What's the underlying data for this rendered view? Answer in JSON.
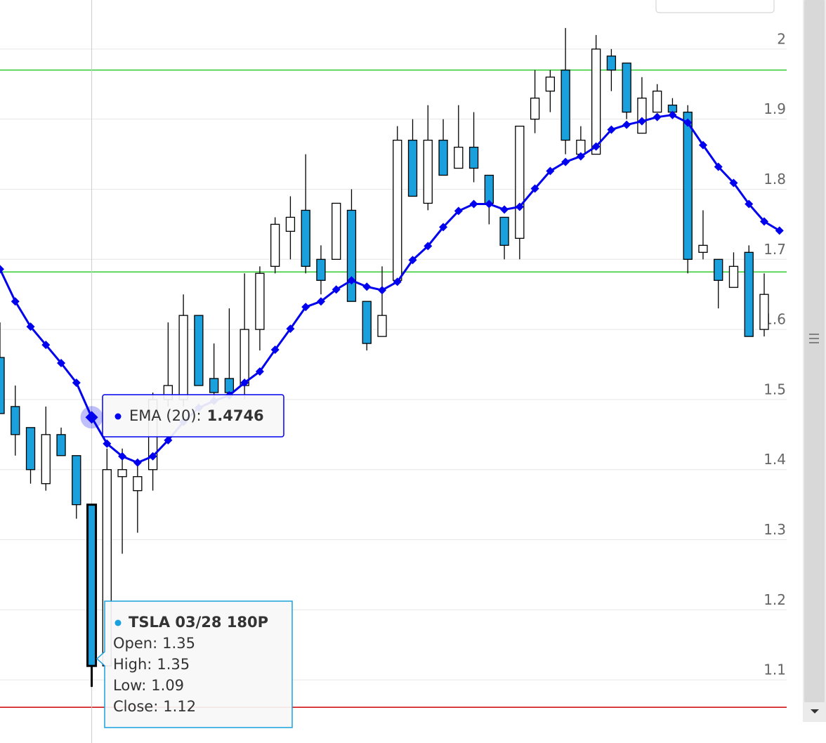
{
  "chart_data": {
    "type": "candlestick",
    "ylim": [
      1.01,
      2.07
    ],
    "yticks": [
      1.1,
      1.2,
      1.3,
      1.4,
      1.5,
      1.6,
      1.7,
      1.8,
      1.9,
      2
    ],
    "grid": true,
    "plot_lines": [
      {
        "value": 1.97,
        "color": "#33cc33"
      },
      {
        "value": 1.682,
        "color": "#33cc33"
      },
      {
        "value": 1.061,
        "color": "#cc0000"
      }
    ],
    "series": [
      {
        "name": "TSLA 03/28 180P",
        "type": "candlestick",
        "color": "#1aa0dc",
        "open": [
          1.56,
          1.49,
          1.46,
          1.38,
          1.45,
          1.42,
          1.35,
          1.12,
          1.39,
          1.37,
          1.4,
          1.5,
          1.5,
          1.62,
          1.53,
          1.53,
          1.52,
          1.6,
          1.69,
          1.74,
          1.77,
          1.7,
          1.7,
          1.77,
          1.64,
          1.59,
          1.67,
          1.87,
          1.78,
          1.87,
          1.83,
          1.86,
          1.82,
          1.76,
          1.73,
          1.9,
          1.94,
          1.97,
          1.85,
          1.85,
          1.99,
          1.98,
          1.88,
          1.91,
          1.92,
          1.91,
          1.71,
          1.7,
          1.66,
          1.71,
          1.6,
          null
        ],
        "high": [
          1.61,
          1.52,
          1.46,
          1.49,
          1.46,
          1.42,
          1.35,
          1.43,
          1.43,
          1.41,
          1.51,
          1.61,
          1.65,
          1.62,
          1.58,
          1.63,
          1.68,
          1.69,
          1.76,
          1.79,
          1.85,
          1.72,
          1.78,
          1.8,
          1.64,
          1.69,
          1.89,
          1.9,
          1.92,
          1.9,
          1.92,
          1.91,
          1.82,
          1.76,
          1.89,
          1.97,
          1.97,
          2.03,
          1.89,
          2.02,
          2.0,
          1.98,
          1.96,
          1.95,
          1.93,
          1.92,
          1.77,
          1.7,
          1.71,
          1.72,
          1.68,
          null
        ],
        "low": [
          1.48,
          1.42,
          1.38,
          1.37,
          1.42,
          1.33,
          1.09,
          1.12,
          1.28,
          1.31,
          1.37,
          1.49,
          1.49,
          1.52,
          1.5,
          1.5,
          1.5,
          1.57,
          1.68,
          1.7,
          1.68,
          1.65,
          1.7,
          1.64,
          1.57,
          1.59,
          1.67,
          1.79,
          1.77,
          1.82,
          1.83,
          1.81,
          1.75,
          1.7,
          1.7,
          1.88,
          1.91,
          1.85,
          1.85,
          1.85,
          1.94,
          1.9,
          1.88,
          1.91,
          1.91,
          1.68,
          1.7,
          1.63,
          1.66,
          1.59,
          1.59,
          null
        ],
        "close": [
          1.48,
          1.45,
          1.4,
          1.45,
          1.42,
          1.35,
          1.12,
          1.4,
          1.4,
          1.39,
          1.5,
          1.52,
          1.62,
          1.52,
          1.51,
          1.51,
          1.6,
          1.68,
          1.75,
          1.76,
          1.69,
          1.67,
          1.78,
          1.64,
          1.58,
          1.62,
          1.87,
          1.79,
          1.87,
          1.82,
          1.86,
          1.83,
          1.78,
          1.72,
          1.89,
          1.93,
          1.96,
          1.87,
          1.87,
          2.0,
          1.97,
          1.91,
          1.93,
          1.94,
          1.91,
          1.7,
          1.72,
          1.67,
          1.69,
          1.59,
          1.65,
          null
        ]
      },
      {
        "name": "EMA (20)",
        "type": "line",
        "color": "#0000ee",
        "values": [
          1.686,
          1.64,
          1.604,
          1.578,
          1.552,
          1.524,
          1.4746,
          1.437,
          1.419,
          1.41,
          1.419,
          1.442,
          1.468,
          1.488,
          1.498,
          1.506,
          1.524,
          1.54,
          1.571,
          1.601,
          1.632,
          1.64,
          1.657,
          1.67,
          1.661,
          1.656,
          1.668,
          1.699,
          1.719,
          1.746,
          1.769,
          1.779,
          1.779,
          1.771,
          1.775,
          1.801,
          1.826,
          1.839,
          1.847,
          1.861,
          1.885,
          1.892,
          1.897,
          1.903,
          1.906,
          1.895,
          1.863,
          1.832,
          1.809,
          1.779,
          1.754,
          1.741
        ]
      }
    ],
    "tooltip": {
      "index": 6,
      "name_suffix": ":",
      "labels": {
        "open": "Open:",
        "high": "High:",
        "low": "Low:",
        "close": "Close:"
      }
    }
  }
}
